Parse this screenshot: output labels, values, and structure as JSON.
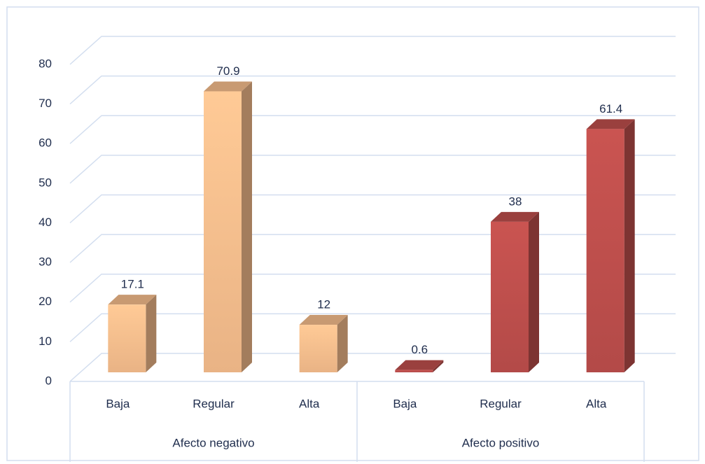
{
  "chart_data": {
    "type": "bar3d",
    "groups": [
      {
        "label": "Afecto negativo",
        "categories": [
          "Baja",
          "Regular",
          "Alta"
        ],
        "values": [
          17.1,
          70.9,
          12
        ],
        "color": "#fac08f"
      },
      {
        "label": "Afecto positivo",
        "categories": [
          "Baja",
          "Regular",
          "Alta"
        ],
        "values": [
          0.6,
          38,
          61.4
        ],
        "color": "#c0504d"
      }
    ],
    "ylim": [
      0,
      80
    ],
    "yticks": [
      0,
      10,
      20,
      30,
      40,
      50,
      60,
      70,
      80
    ],
    "grid": true
  }
}
